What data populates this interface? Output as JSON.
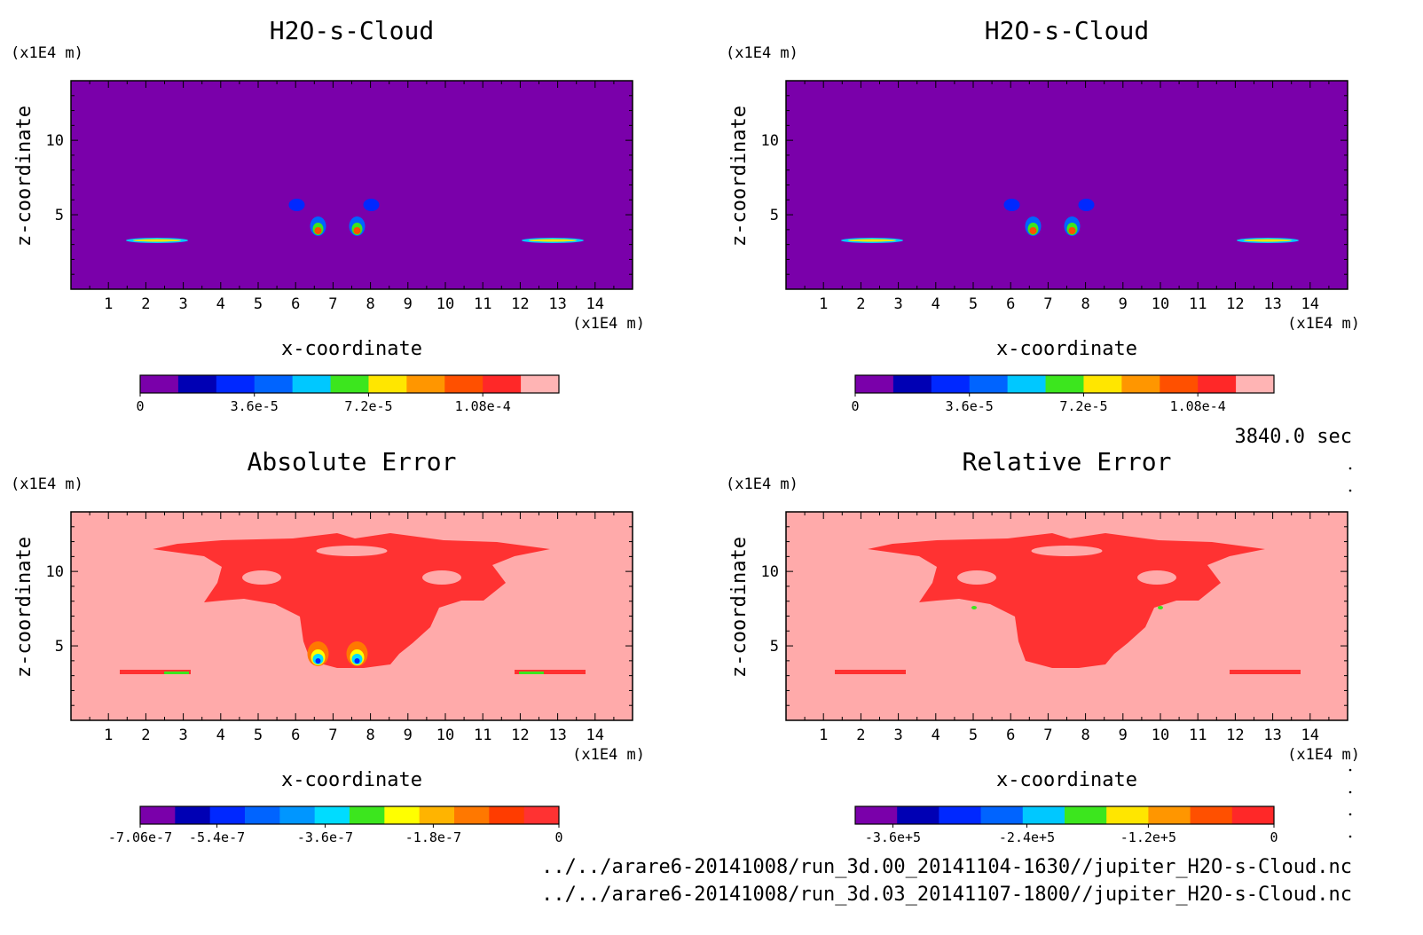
{
  "panels": [
    {
      "title": "H2O-s-Cloud",
      "xlabel": "x-coordinate",
      "ylabel": "z-coordinate",
      "x_unit": "(x1E4 m)",
      "z_unit": "(x1E4 m)",
      "x_ticks": [
        "1",
        "2",
        "3",
        "4",
        "5",
        "6",
        "7",
        "8",
        "9",
        "10",
        "11",
        "12",
        "13",
        "14"
      ],
      "z_ticks": [
        "5",
        "10"
      ],
      "colorbar": {
        "colors": [
          "#7a00aa",
          "#0000b4",
          "#0028ff",
          "#0064ff",
          "#00c8ff",
          "#3ce61e",
          "#ffe600",
          "#ff9600",
          "#ff5000",
          "#ff2828",
          "#ffb4b4"
        ],
        "labels": [
          "0",
          "3.6e-5",
          "7.2e-5",
          "1.08e-4"
        ]
      }
    },
    {
      "title": "H2O-s-Cloud",
      "xlabel": "x-coordinate",
      "ylabel": "z-coordinate",
      "x_unit": "(x1E4 m)",
      "z_unit": "(x1E4 m)",
      "x_ticks": [
        "1",
        "2",
        "3",
        "4",
        "5",
        "6",
        "7",
        "8",
        "9",
        "10",
        "11",
        "12",
        "13",
        "14"
      ],
      "z_ticks": [
        "5",
        "10"
      ],
      "colorbar": {
        "colors": [
          "#7a00aa",
          "#0000b4",
          "#0028ff",
          "#0064ff",
          "#00c8ff",
          "#3ce61e",
          "#ffe600",
          "#ff9600",
          "#ff5000",
          "#ff2828",
          "#ffb4b4"
        ],
        "labels": [
          "0",
          "3.6e-5",
          "7.2e-5",
          "1.08e-4"
        ]
      }
    },
    {
      "title": "Absolute Error",
      "xlabel": "x-coordinate",
      "ylabel": "z-coordinate",
      "x_unit": "(x1E4 m)",
      "z_unit": "(x1E4 m)",
      "x_ticks": [
        "1",
        "2",
        "3",
        "4",
        "5",
        "6",
        "7",
        "8",
        "9",
        "10",
        "11",
        "12",
        "13",
        "14"
      ],
      "z_ticks": [
        "5",
        "10"
      ],
      "colorbar": {
        "colors": [
          "#7a00aa",
          "#0000b4",
          "#0028ff",
          "#0064ff",
          "#0096ff",
          "#00dcff",
          "#3ce61e",
          "#ffff00",
          "#ffb400",
          "#ff7800",
          "#ff3c00",
          "#ff3232"
        ],
        "labels": [
          "-7.06e-7",
          "-5.4e-7",
          "-3.6e-7",
          "-1.8e-7",
          "0"
        ]
      }
    },
    {
      "title": "Relative Error",
      "xlabel": "x-coordinate",
      "ylabel": "z-coordinate",
      "x_unit": "(x1E4 m)",
      "z_unit": "(x1E4 m)",
      "x_ticks": [
        "1",
        "2",
        "3",
        "4",
        "5",
        "6",
        "7",
        "8",
        "9",
        "10",
        "11",
        "12",
        "13",
        "14"
      ],
      "z_ticks": [
        "5",
        "10"
      ],
      "colorbar": {
        "colors": [
          "#7a00aa",
          "#0000b4",
          "#0028ff",
          "#0064ff",
          "#00c8ff",
          "#3ce61e",
          "#ffe600",
          "#ff9600",
          "#ff5000",
          "#ff2828"
        ],
        "labels": [
          "-3.6e+5",
          "-2.4e+5",
          "-1.2e+5",
          "0"
        ]
      }
    }
  ],
  "time_label": "3840.0 sec",
  "file1": "../../arare6-20141008/run_3d.00_20141104-1630//jupiter_H2O-s-Cloud.nc",
  "file2": "../../arare6-20141008/run_3d.03_20141107-1800//jupiter_H2O-s-Cloud.nc",
  "chart_data": [
    {
      "type": "heatmap",
      "title": "H2O-s-Cloud",
      "xlabel": "x-coordinate",
      "ylabel": "z-coordinate",
      "xlim": [
        0,
        15
      ],
      "ylim": [
        0,
        14
      ],
      "background_level": "0",
      "colorbar_ticks": [
        0,
        3.6e-05,
        7.2e-05,
        0.000108
      ]
    },
    {
      "type": "heatmap",
      "title": "H2O-s-Cloud",
      "xlabel": "x-coordinate",
      "ylabel": "z-coordinate",
      "xlim": [
        0,
        15
      ],
      "ylim": [
        0,
        14
      ],
      "background_level": "0",
      "colorbar_ticks": [
        0,
        3.6e-05,
        7.2e-05,
        0.000108
      ]
    },
    {
      "type": "heatmap",
      "title": "Absolute Error",
      "xlabel": "x-coordinate",
      "ylabel": "z-coordinate",
      "xlim": [
        0,
        15
      ],
      "ylim": [
        0,
        14
      ],
      "colorbar_ticks": [
        -7.06e-07,
        -5.4e-07,
        -3.6e-07,
        -1.8e-07,
        0
      ]
    },
    {
      "type": "heatmap",
      "title": "Relative Error",
      "xlabel": "x-coordinate",
      "ylabel": "z-coordinate",
      "xlim": [
        0,
        15
      ],
      "ylim": [
        0,
        14
      ],
      "colorbar_ticks": [
        -360000.0,
        -240000.0,
        -120000.0,
        0
      ]
    }
  ]
}
